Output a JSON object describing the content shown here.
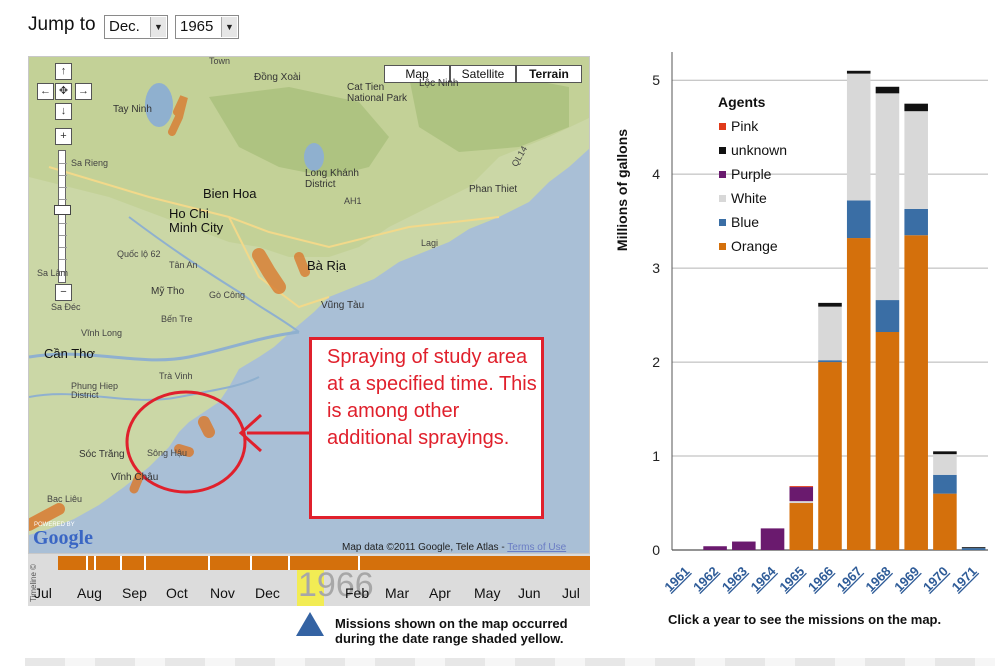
{
  "jump": {
    "label": "Jump to",
    "month": "Dec.",
    "year": "1965"
  },
  "map": {
    "types": {
      "map": "Map",
      "satellite": "Satellite",
      "terrain": "Terrain"
    },
    "places": [
      "Town",
      "Đồng Xoài",
      "Cat Tien National Park",
      "Lộc Ninh",
      "Long Khánh District",
      "Tay Ninh",
      "Bien Hoa",
      "Ho Chi Minh City",
      "Phan Thiet",
      "Sa Rieng",
      "Bà Rịa",
      "Vũng Tàu",
      "Mỹ Tho",
      "Bến Tre",
      "Cần Thơ",
      "Phung Hiep District",
      "Sóc Trăng",
      "Sông Hậu",
      "Trà Vinh",
      "Bac Liêu",
      "Vĩnh Châu",
      "Vĩnh Long",
      "Sa Đéc",
      "Gò Công",
      "Tân An",
      "Lagi",
      "Sa Lâm",
      "AH1",
      "QL14",
      "Quốc lộ 62"
    ],
    "data_credit": "Map data ©2011 Google, Tele Atlas -",
    "terms": "Terms of Use",
    "powered_by": "POWERED BY",
    "google": "Google"
  },
  "annotation": {
    "text": "Spraying of study area at a specified time. This is among other additional sprayings."
  },
  "timeline": {
    "side_label": "Timeline ©",
    "year": "1966",
    "months": [
      "Jul",
      "Aug",
      "Sep",
      "Oct",
      "Nov",
      "Dec",
      "Feb",
      "Mar",
      "Apr",
      "May",
      "Jun",
      "Jul"
    ],
    "note": "Missions shown on the map occurred during the date range shaded yellow."
  },
  "colors": {
    "orange": "#d4700c",
    "blue": "#3a6ea5",
    "white": "#d8d8d8",
    "purple": "#6a1a6e",
    "unknown": "#111111",
    "pink": "#e03a1a",
    "annotation": "#e0202c",
    "marker": "#3463a3"
  },
  "chart_data": {
    "type": "bar",
    "stacked": true,
    "categories": [
      "1961",
      "1962",
      "1963",
      "1964",
      "1965",
      "1966",
      "1967",
      "1968",
      "1969",
      "1970",
      "1971"
    ],
    "ylabel": "Millions of gallons",
    "ylim": [
      0,
      5.3
    ],
    "yticks": [
      0,
      1,
      2,
      3,
      4,
      5
    ],
    "grid": true,
    "legend_title": "Agents",
    "legend_position": "top-left",
    "series": [
      {
        "name": "Orange",
        "color": "#d4700c",
        "values": [
          0,
          0,
          0,
          0,
          0.5,
          2.0,
          3.32,
          2.32,
          3.35,
          0.6,
          0
        ]
      },
      {
        "name": "Blue",
        "color": "#3a6ea5",
        "values": [
          0,
          0,
          0,
          0,
          0.0,
          0.02,
          0.4,
          0.34,
          0.28,
          0.2,
          0.02
        ]
      },
      {
        "name": "White",
        "color": "#d8d8d8",
        "values": [
          0,
          0,
          0,
          0,
          0.02,
          0.57,
          1.35,
          2.2,
          1.04,
          0.22,
          0
        ]
      },
      {
        "name": "Purple",
        "color": "#6a1a6e",
        "values": [
          0,
          0.04,
          0.09,
          0.23,
          0.15,
          0,
          0,
          0,
          0,
          0,
          0
        ]
      },
      {
        "name": "unknown",
        "color": "#111111",
        "values": [
          0,
          0,
          0,
          0,
          0,
          0.04,
          0.03,
          0.07,
          0.08,
          0.03,
          0.01
        ]
      },
      {
        "name": "Pink",
        "color": "#e03a1a",
        "values": [
          0,
          0,
          0,
          0,
          0.01,
          0,
          0,
          0,
          0,
          0,
          0
        ]
      }
    ],
    "caption": "Click a year to see the missions on the map."
  }
}
